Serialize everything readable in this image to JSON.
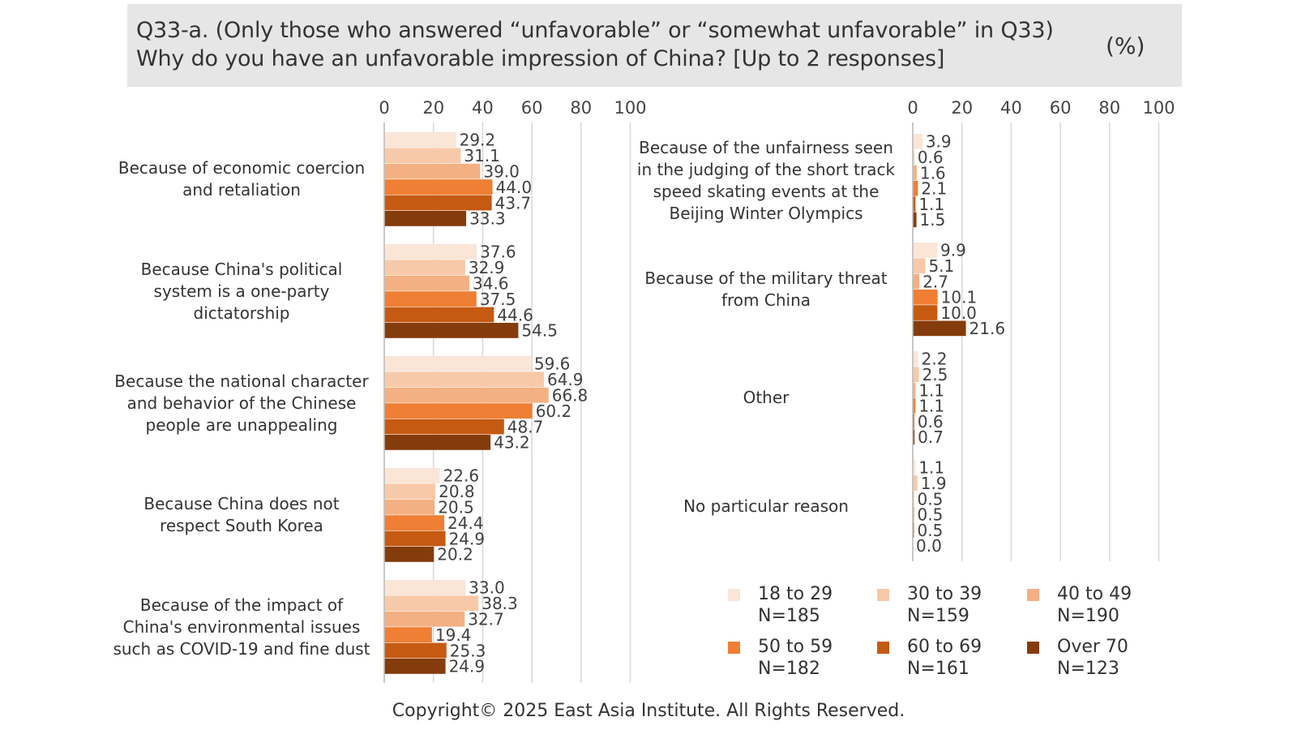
{
  "title": {
    "line1": "Q33-a. (Only those who answered “unfavorable” or “somewhat unfavorable” in Q33)",
    "line2": "Why do you have an unfavorable impression of China? [Up to 2 responses]",
    "unit": "(%)"
  },
  "copyright": "Copyright© 2025 East Asia Institute. All Rights Reserved.",
  "legend": [
    {
      "range": "18 to 29",
      "n": "N=185"
    },
    {
      "range": "30 to 39",
      "n": "N=159"
    },
    {
      "range": "40 to 49",
      "n": "N=190"
    },
    {
      "range": "50 to 59",
      "n": "N=182"
    },
    {
      "range": "60 to 69",
      "n": "N=161"
    },
    {
      "range": "Over 70",
      "n": "N=123"
    }
  ],
  "chart_data": [
    {
      "type": "bar",
      "orientation": "horizontal",
      "xlim": [
        0,
        100
      ],
      "xticks": [
        0,
        20,
        40,
        60,
        80,
        100
      ],
      "grid": true,
      "colors": [
        "#fae5d7",
        "#f8c9a8",
        "#f4b083",
        "#ee7f34",
        "#c55a12",
        "#843c0c"
      ],
      "categories": [
        [
          "Because of economic coercion",
          "and retaliation"
        ],
        [
          "Because China's political",
          "system is a one-party",
          "dictatorship"
        ],
        [
          "Because the national character",
          "and behavior of the Chinese",
          "people are unappealing"
        ],
        [
          "Because China does not",
          "respect South Korea"
        ],
        [
          "Because of the impact of",
          "China's environmental issues",
          "such as COVID-19 and fine dust"
        ]
      ],
      "series": [
        {
          "name": "18 to 29",
          "values": [
            29.2,
            37.6,
            59.6,
            22.6,
            33.0
          ],
          "labels": [
            "29.2",
            "37.6",
            "59.6",
            "22.6",
            "33.0"
          ]
        },
        {
          "name": "30 to 39",
          "values": [
            31.1,
            32.9,
            64.9,
            20.8,
            38.3
          ],
          "labels": [
            "31.1",
            "32.9",
            "64.9",
            "20.8",
            "38.3"
          ]
        },
        {
          "name": "40 to 49",
          "values": [
            39.0,
            34.6,
            66.8,
            20.5,
            32.7
          ],
          "labels": [
            "39.0",
            "34.6",
            "66.8",
            "20.5",
            "32.7"
          ]
        },
        {
          "name": "50 to 59",
          "values": [
            44.0,
            37.5,
            60.2,
            24.4,
            19.4
          ],
          "labels": [
            "44.0",
            "37.5",
            "60.2",
            "24.4",
            "19.4"
          ]
        },
        {
          "name": "60 to 69",
          "values": [
            43.7,
            44.6,
            48.7,
            24.9,
            25.3
          ],
          "labels": [
            "43.7",
            "44.6",
            "48.7",
            "24.9",
            "25.3"
          ]
        },
        {
          "name": "Over 70",
          "values": [
            33.3,
            54.5,
            43.2,
            20.2,
            24.9
          ],
          "labels": [
            "33.3",
            "54.5",
            "43.2",
            "20.2",
            "24.9"
          ]
        }
      ]
    },
    {
      "type": "bar",
      "orientation": "horizontal",
      "xlim": [
        0,
        100
      ],
      "xticks": [
        0,
        20,
        40,
        60,
        80,
        100
      ],
      "grid": true,
      "colors": [
        "#fae5d7",
        "#f8c9a8",
        "#f4b083",
        "#ee7f34",
        "#c55a12",
        "#843c0c"
      ],
      "categories": [
        [
          "Because of the unfairness seen",
          "in the judging of the short track",
          "speed skating events at the",
          "Beijing Winter Olympics"
        ],
        [
          "Because of the military threat",
          "from China"
        ],
        [
          "Other"
        ],
        [
          "No particular reason"
        ]
      ],
      "series": [
        {
          "name": "18 to 29",
          "values": [
            3.9,
            9.9,
            2.2,
            1.1
          ],
          "labels": [
            "3.9",
            "9.9",
            "2.2",
            "1.1"
          ]
        },
        {
          "name": "30 to 39",
          "values": [
            0.6,
            5.1,
            2.5,
            1.9
          ],
          "labels": [
            "0.6",
            "5.1",
            "2.5",
            "1.9"
          ]
        },
        {
          "name": "40 to 49",
          "values": [
            1.6,
            2.7,
            1.1,
            0.5
          ],
          "labels": [
            "1.6",
            "2.7",
            "1.1",
            "0.5"
          ]
        },
        {
          "name": "50 to 59",
          "values": [
            2.1,
            10.1,
            1.1,
            0.5
          ],
          "labels": [
            "2.1",
            "10.1",
            "1.1",
            "0.5"
          ]
        },
        {
          "name": "60 to 69",
          "values": [
            1.1,
            10.0,
            0.6,
            0.5
          ],
          "labels": [
            "1.1",
            "10.0",
            "0.6",
            "0.5"
          ]
        },
        {
          "name": "Over 70",
          "values": [
            1.5,
            21.6,
            0.7,
            0.0
          ],
          "labels": [
            "1.5",
            "21.6",
            "0.7",
            "0.0"
          ]
        }
      ]
    }
  ]
}
